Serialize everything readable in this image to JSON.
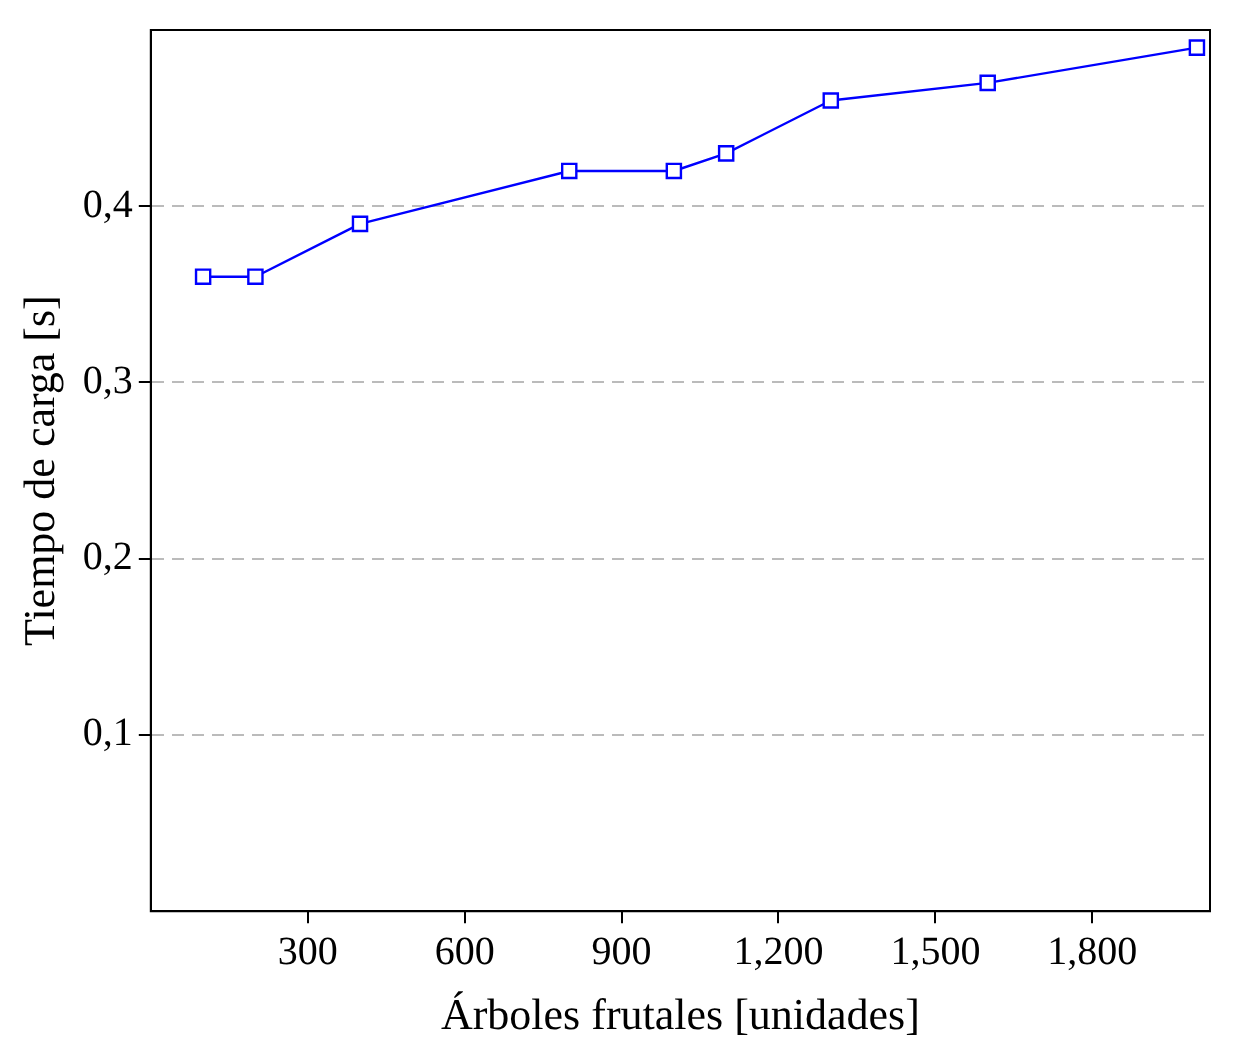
{
  "chart_data": {
    "type": "line",
    "xlabel": "Árboles frutales [unidades]",
    "ylabel": "Tiempo de carga [s]",
    "x": [
      100,
      200,
      400,
      800,
      1000,
      1100,
      1300,
      1600,
      2000
    ],
    "series": [
      {
        "color": "#0000ff",
        "values": [
          0.36,
          0.36,
          0.39,
          0.42,
          0.42,
          0.43,
          0.46,
          0.47,
          0.49
        ]
      }
    ],
    "xlim": [
      0,
      2025
    ],
    "ylim": [
      0,
      0.5
    ],
    "xticks": [
      300,
      600,
      900,
      {
        "value": 1200,
        "label": "1,200"
      },
      {
        "value": 1500,
        "label": "1,500"
      },
      {
        "value": 1800,
        "label": "1,800"
      }
    ],
    "yticks": [
      {
        "value": 0.1,
        "label": "0,1"
      },
      {
        "value": 0.2,
        "label": "0,2"
      },
      {
        "value": 0.3,
        "label": "0,3"
      },
      {
        "value": 0.4,
        "label": "0,4"
      }
    ],
    "grid": "y",
    "marker": "square",
    "line_style": "solid",
    "legend": false
  }
}
